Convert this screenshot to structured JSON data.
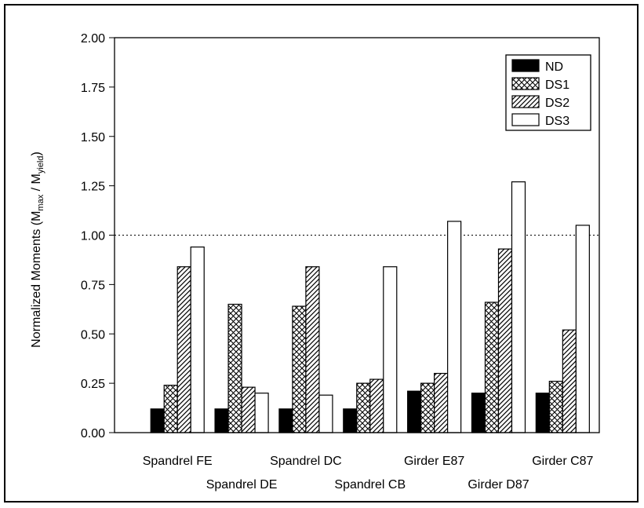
{
  "chart_data": {
    "type": "bar",
    "title": "",
    "xlabel": "",
    "ylabel": {
      "prefix": "Normalized Moments (M",
      "sub1": "max",
      "middle": " / M",
      "sub2": "yield",
      "suffix": ")"
    },
    "ylim": [
      0,
      2.0
    ],
    "yticks": [
      "0.00",
      "0.25",
      "0.50",
      "0.75",
      "1.00",
      "1.25",
      "1.50",
      "1.75",
      "2.00"
    ],
    "reference_line": 1.0,
    "legend_position": "top-right",
    "categories": [
      "Spandrel FE",
      "Spandrel DE",
      "Spandrel DC",
      "Spandrel CB",
      "Girder E87",
      "Girder D87",
      "Girder C87"
    ],
    "series": [
      {
        "name": "ND",
        "values": [
          0.12,
          0.12,
          0.12,
          0.12,
          0.21,
          0.2,
          0.2
        ]
      },
      {
        "name": "DS1",
        "values": [
          0.24,
          0.65,
          0.64,
          0.25,
          0.25,
          0.66,
          0.26
        ]
      },
      {
        "name": "DS2",
        "values": [
          0.84,
          0.23,
          0.84,
          0.27,
          0.3,
          0.93,
          0.52
        ]
      },
      {
        "name": "DS3",
        "values": [
          0.94,
          0.2,
          0.19,
          0.84,
          1.07,
          1.27,
          1.05
        ]
      }
    ]
  }
}
